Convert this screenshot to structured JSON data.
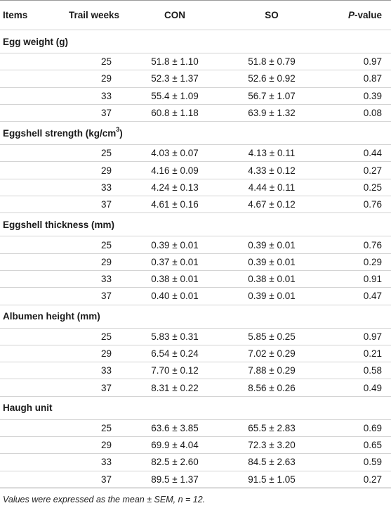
{
  "table": {
    "headers": {
      "items": "Items",
      "weeks": "Trail weeks",
      "con": "CON",
      "so": "SO",
      "p_italic": "P",
      "p_rest": "-value"
    },
    "groups": [
      {
        "name": "Egg weight (g)",
        "rows": [
          {
            "week": "25",
            "con": "51.8 ± 1.10",
            "so": "51.8 ± 0.79",
            "p": "0.97"
          },
          {
            "week": "29",
            "con": "52.3 ± 1.37",
            "so": "52.6 ± 0.92",
            "p": "0.87"
          },
          {
            "week": "33",
            "con": "55.4 ± 1.09",
            "so": "56.7 ± 1.07",
            "p": "0.39"
          },
          {
            "week": "37",
            "con": "60.8 ± 1.18",
            "so": "63.9 ± 1.32",
            "p": "0.08"
          }
        ]
      },
      {
        "name": "Eggshell strength (kg/cm",
        "sup": "3",
        "suffix": ")",
        "rows": [
          {
            "week": "25",
            "con": "4.03 ± 0.07",
            "so": "4.13 ± 0.11",
            "p": "0.44"
          },
          {
            "week": "29",
            "con": "4.16 ± 0.09",
            "so": "4.33 ± 0.12",
            "p": "0.27"
          },
          {
            "week": "33",
            "con": "4.24 ± 0.13",
            "so": "4.44 ± 0.11",
            "p": "0.25"
          },
          {
            "week": "37",
            "con": "4.61 ± 0.16",
            "so": "4.67 ± 0.12",
            "p": "0.76"
          }
        ]
      },
      {
        "name": "Eggshell thickness (mm)",
        "rows": [
          {
            "week": "25",
            "con": "0.39 ± 0.01",
            "so": "0.39 ± 0.01",
            "p": "0.76"
          },
          {
            "week": "29",
            "con": "0.37 ± 0.01",
            "so": "0.39 ± 0.01",
            "p": "0.29"
          },
          {
            "week": "33",
            "con": "0.38 ± 0.01",
            "so": "0.38 ± 0.01",
            "p": "0.91"
          },
          {
            "week": "37",
            "con": "0.40 ± 0.01",
            "so": "0.39 ± 0.01",
            "p": "0.47"
          }
        ]
      },
      {
        "name": "Albumen height (mm)",
        "rows": [
          {
            "week": "25",
            "con": "5.83 ± 0.31",
            "so": "5.85 ± 0.25",
            "p": "0.97"
          },
          {
            "week": "29",
            "con": "6.54 ± 0.24",
            "so": "7.02 ± 0.29",
            "p": "0.21"
          },
          {
            "week": "33",
            "con": "7.70 ± 0.12",
            "so": "7.88 ± 0.29",
            "p": "0.58"
          },
          {
            "week": "37",
            "con": "8.31 ± 0.22",
            "so": "8.56 ± 0.26",
            "p": "0.49"
          }
        ]
      },
      {
        "name": "Haugh unit",
        "rows": [
          {
            "week": "25",
            "con": "63.6 ± 3.85",
            "so": "65.5 ± 2.83",
            "p": "0.69"
          },
          {
            "week": "29",
            "con": "69.9 ± 4.04",
            "so": "72.3 ± 3.20",
            "p": "0.65"
          },
          {
            "week": "33",
            "con": "82.5 ± 2.60",
            "so": "84.5 ± 2.63",
            "p": "0.59"
          },
          {
            "week": "37",
            "con": "89.5 ± 1.37",
            "so": "91.5 ± 1.05",
            "p": "0.27"
          }
        ]
      }
    ]
  },
  "footnote": "Values were expressed as the mean ± SEM, n = 12."
}
